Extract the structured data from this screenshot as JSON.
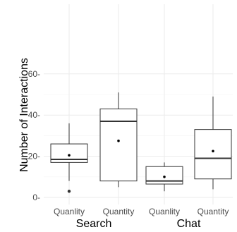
{
  "chart_data": {
    "type": "boxplot",
    "title": "",
    "ylabel": "Number of Interactions",
    "xlabel": "",
    "ylim": [
      -2,
      62
    ],
    "y_ticks": [
      0,
      20,
      40,
      60
    ],
    "y_tick_labels": [
      "0-",
      "20-",
      "40-",
      "60-"
    ],
    "grid": true,
    "groups": [
      "Search",
      "Chat"
    ],
    "boxes": [
      {
        "label": "Quanlity",
        "group": "Search",
        "whisker_low": 8,
        "q1": 17,
        "median": 18.5,
        "q3": 26,
        "whisker_high": 36,
        "mean": 20.5,
        "outliers": [
          3
        ]
      },
      {
        "label": "Quantity",
        "group": "Search",
        "whisker_low": 5,
        "q1": 8,
        "median": 37,
        "q3": 43,
        "whisker_high": 51,
        "mean": 27.5,
        "outliers": []
      },
      {
        "label": "Quanlity",
        "group": "Chat",
        "whisker_low": 3,
        "q1": 6.5,
        "median": 8,
        "q3": 15,
        "whisker_high": 17,
        "mean": 10,
        "outliers": []
      },
      {
        "label": "Quantity",
        "group": "Chat",
        "whisker_low": 4,
        "q1": 9,
        "median": 19,
        "q3": 33,
        "whisker_high": 49,
        "mean": 22.5,
        "outliers": []
      }
    ]
  }
}
